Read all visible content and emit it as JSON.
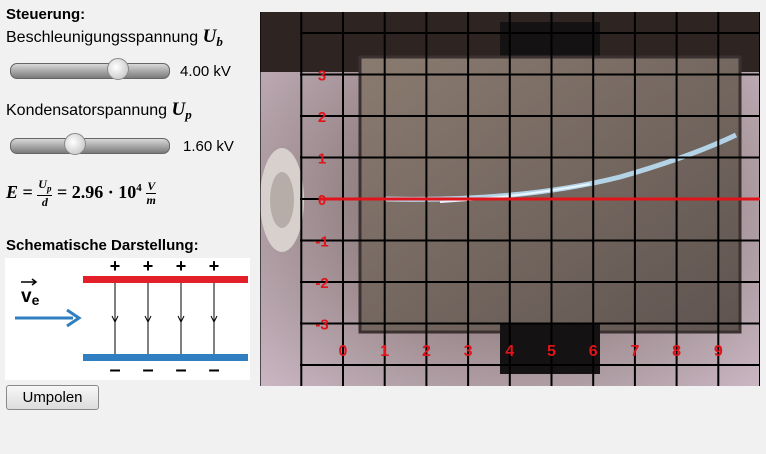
{
  "control": {
    "heading": "Steuerung:",
    "sliders": [
      {
        "label": "Beschleunigungsspannung",
        "symbol": "U",
        "subscript": "b",
        "value": "4.00 kV"
      },
      {
        "label": "Kondensatorspannung",
        "symbol": "U",
        "subscript": "p",
        "value": "1.60 kV"
      }
    ],
    "formula": {
      "lhs": "E",
      "equals": "=",
      "numerator": "U",
      "numerator_subscript": "p",
      "denominator": "d",
      "result": "= 2.96 · 10",
      "exponent": "4",
      "unit_numerator": "V",
      "unit_denominator": "m"
    }
  },
  "schematic": {
    "heading": "Schematische Darstellung:",
    "plus_signs": [
      "+",
      "+",
      "+",
      "+"
    ],
    "minus_signs": [
      "–",
      "–",
      "–",
      "–"
    ],
    "velocity": "v",
    "velocity_subscript": "e"
  },
  "button": {
    "label": "Umpolen"
  },
  "screen": {
    "x_labels": [
      "0",
      "1",
      "2",
      "3",
      "4",
      "5",
      "6",
      "7",
      "8",
      "9"
    ],
    "y_labels": [
      "3",
      "2",
      "1",
      "0",
      "-1",
      "-2",
      "-3"
    ]
  }
}
